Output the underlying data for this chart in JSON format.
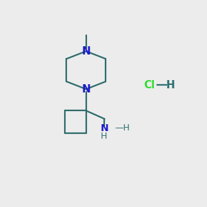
{
  "background_color": "#ececec",
  "bond_color": "#2d6b6b",
  "N_color": "#1a1acc",
  "NH_color": "#2d7070",
  "HCl_Cl_color": "#33dd33",
  "HCl_H_color": "#2d7070",
  "HCl_dash_color": "#2d7070",
  "methyl_color": "#2d6b6b",
  "line_width": 1.6,
  "fig_size": [
    3.0,
    3.0
  ],
  "dpi": 100,
  "xlim": [
    0,
    10
  ],
  "ylim": [
    0,
    10
  ]
}
